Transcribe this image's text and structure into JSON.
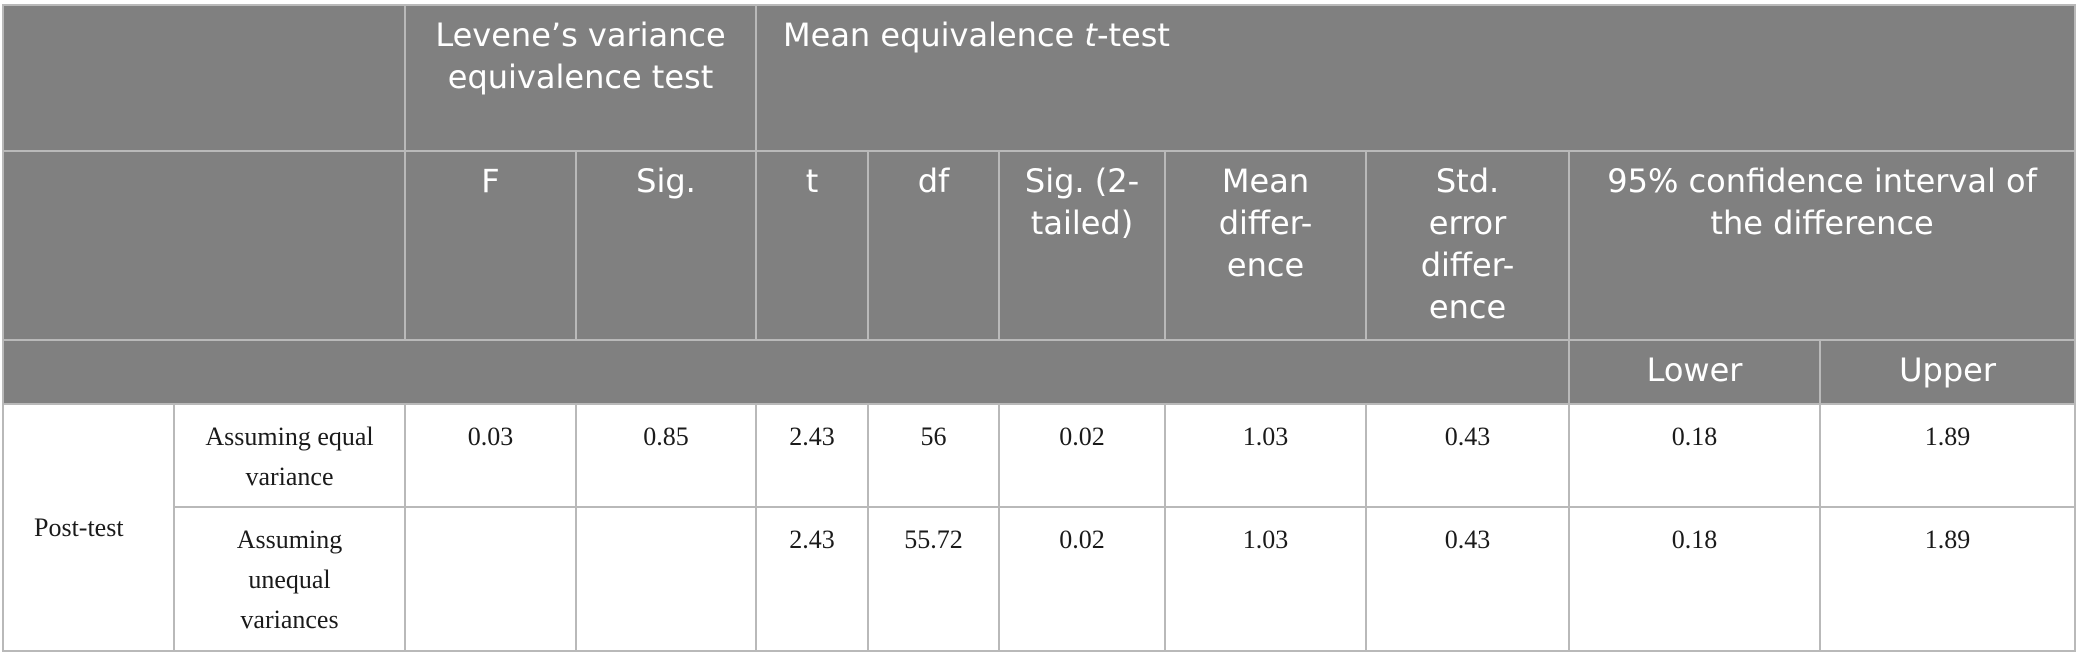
{
  "header": {
    "levene": "Levene’s variance equivalence test",
    "ttest_prefix": "Mean equivalence ",
    "ttest_t": "t",
    "ttest_suffix": "-test",
    "columns": [
      "F",
      "Sig.",
      "t",
      "df",
      "Sig. (2-tailed)",
      "Mean differ-ence",
      "Std. error differ-ence",
      "95% confidence interval of the difference"
    ],
    "ci_lower": "Lower",
    "ci_upper": "Upper"
  },
  "rows": [
    {
      "group": "Post-test",
      "condition": "Assuming equal variance",
      "F": "0.03",
      "sig": "0.85",
      "t": "2.43",
      "df": "56",
      "sig2": "0.02",
      "mean_diff": "1.03",
      "se_diff": "0.43",
      "lower": "0.18",
      "upper": "1.89"
    },
    {
      "condition": "Assuming unequal variances",
      "F": "",
      "sig": "",
      "t": "2.43",
      "df": "55.72",
      "sig2": "0.02",
      "mean_diff": "1.03",
      "se_diff": "0.43",
      "lower": "0.18",
      "upper": "1.89"
    }
  ]
}
